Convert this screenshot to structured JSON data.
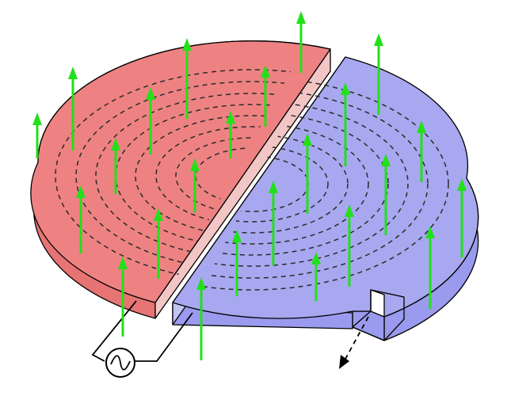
{
  "colors": {
    "left_plate_top": "#ee8282",
    "left_plate_side": "#e77474",
    "left_plate_cut": "#f3c6c6",
    "right_plate_top": "#a8a8f0",
    "right_plate_side": "#9a9aee",
    "right_plate_cut": "#c3c3f6",
    "field_arrow": "#22e01a",
    "outline": "#000000"
  },
  "icons": {
    "source": "ac-source-icon",
    "field": "up-arrow-icon",
    "flow": "dashed-arrow-icon"
  }
}
